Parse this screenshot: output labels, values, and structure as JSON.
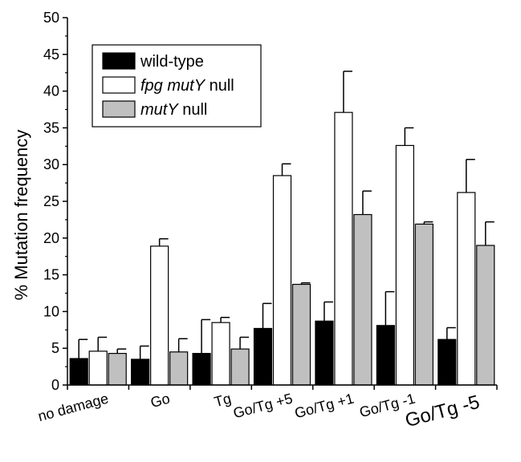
{
  "chart_data": {
    "type": "bar",
    "title": "",
    "xlabel": "",
    "ylabel": "% Mutation frequency",
    "ylim": [
      0,
      50
    ],
    "yticks": [
      0,
      5,
      10,
      15,
      20,
      25,
      30,
      35,
      40,
      45,
      50
    ],
    "grid": false,
    "legend_position": "top-left",
    "categories": [
      "no damage",
      "Go",
      "Tg",
      "Go/Tg +5",
      "Go/Tg +1",
      "Go/Tg -1",
      "Go/Tg -5"
    ],
    "series": [
      {
        "name": "wild-type",
        "fill": "#000000",
        "values": [
          3.6,
          3.5,
          4.3,
          7.7,
          8.7,
          8.1,
          6.2
        ],
        "error": [
          2.6,
          1.8,
          4.6,
          3.4,
          2.6,
          4.6,
          1.6
        ]
      },
      {
        "name": "fpg mutY null",
        "fill": "#ffffff",
        "values": [
          4.6,
          18.9,
          8.5,
          28.5,
          37.1,
          32.6,
          26.2
        ],
        "error": [
          1.9,
          1.0,
          0.7,
          1.6,
          5.6,
          2.4,
          4.5
        ]
      },
      {
        "name": "mutY null",
        "fill": "#c0c0c0",
        "values": [
          4.3,
          4.5,
          4.9,
          13.7,
          23.2,
          21.9,
          19.0
        ],
        "error": [
          0.6,
          1.8,
          1.6,
          0.2,
          3.2,
          0.3,
          3.2
        ]
      }
    ],
    "legend": [
      {
        "prefix": "",
        "italic": "",
        "suffix": "wild-type"
      },
      {
        "prefix": "",
        "italic": "fpg mutY",
        "suffix": " null"
      },
      {
        "prefix": "",
        "italic": "mutY",
        "suffix": " null"
      }
    ]
  }
}
